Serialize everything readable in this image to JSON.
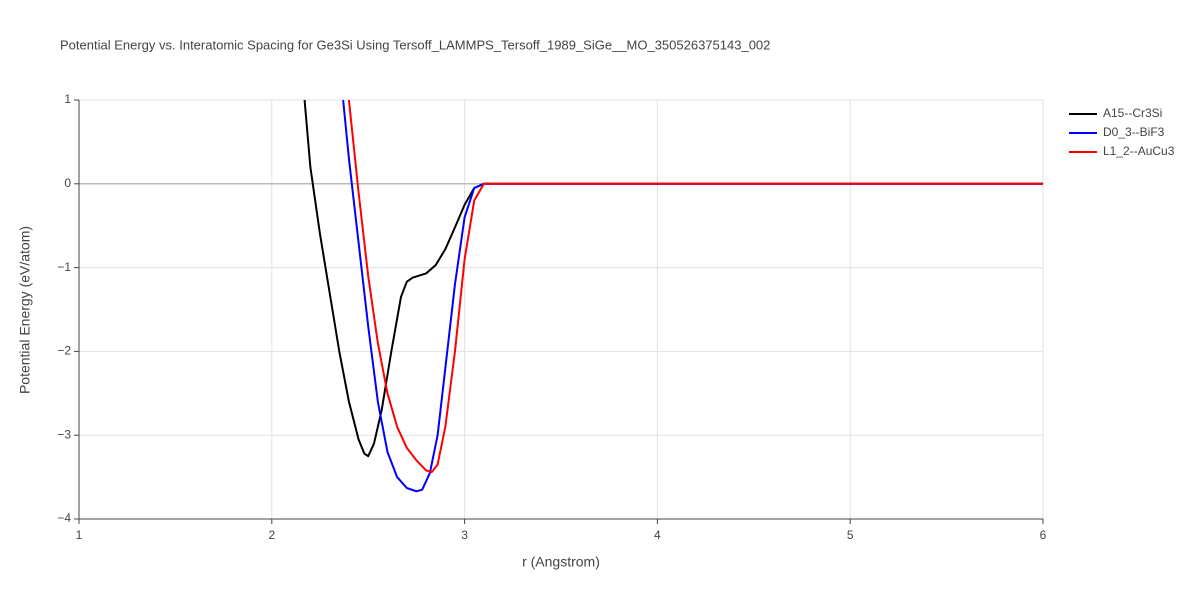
{
  "chart_data": {
    "type": "line",
    "title": "Potential Energy vs. Interatomic Spacing for Ge3Si Using Tersoff_LAMMPS_Tersoff_1989_SiGe__MO_350526375143_002",
    "x_label": "r (Angstrom)",
    "y_label": "Potential Energy (eV/atom)",
    "xlim": [
      1,
      6
    ],
    "xticks": [
      1,
      2,
      3,
      4,
      5,
      6
    ],
    "ylim": [
      -4,
      1
    ],
    "yticks": [
      {
        "value": -4,
        "label": "−4"
      },
      {
        "value": -3,
        "label": "−3"
      },
      {
        "value": -2,
        "label": "−2"
      },
      {
        "value": -1,
        "label": "−1"
      },
      0,
      1
    ],
    "grid": true,
    "legend": "top-right",
    "series": [
      {
        "name": "A15--Cr3Si",
        "color": "#000000",
        "x": [
          2.17,
          2.2,
          2.25,
          2.3,
          2.35,
          2.4,
          2.45,
          2.48,
          2.5,
          2.53,
          2.57,
          2.62,
          2.67,
          2.7,
          2.73,
          2.8,
          2.85,
          2.9,
          2.95,
          3.0,
          3.05,
          3.1,
          6
        ],
        "values": [
          1,
          0.2,
          -0.6,
          -1.3,
          -2.0,
          -2.6,
          -3.05,
          -3.22,
          -3.25,
          -3.1,
          -2.7,
          -2.0,
          -1.35,
          -1.17,
          -1.12,
          -1.07,
          -0.97,
          -0.78,
          -0.52,
          -0.25,
          -0.05,
          0,
          0
        ]
      },
      {
        "name": "D0_3--BiF3",
        "color": "#0000ff",
        "x": [
          2.37,
          2.4,
          2.45,
          2.5,
          2.55,
          2.6,
          2.65,
          2.7,
          2.75,
          2.78,
          2.82,
          2.86,
          2.9,
          2.95,
          3.0,
          3.05,
          3.1,
          6
        ],
        "values": [
          1,
          0.3,
          -0.7,
          -1.7,
          -2.6,
          -3.2,
          -3.5,
          -3.63,
          -3.67,
          -3.65,
          -3.45,
          -3.0,
          -2.2,
          -1.2,
          -0.4,
          -0.05,
          0,
          0
        ]
      },
      {
        "name": "L1_2--AuCu3",
        "color": "#ff0000",
        "x": [
          2.4,
          2.45,
          2.5,
          2.55,
          2.6,
          2.65,
          2.7,
          2.75,
          2.8,
          2.83,
          2.86,
          2.9,
          2.95,
          3.0,
          3.05,
          3.1,
          6
        ],
        "values": [
          1,
          -0.1,
          -1.1,
          -1.9,
          -2.5,
          -2.9,
          -3.15,
          -3.3,
          -3.42,
          -3.44,
          -3.35,
          -2.9,
          -2.0,
          -0.9,
          -0.2,
          0,
          0
        ]
      }
    ]
  }
}
